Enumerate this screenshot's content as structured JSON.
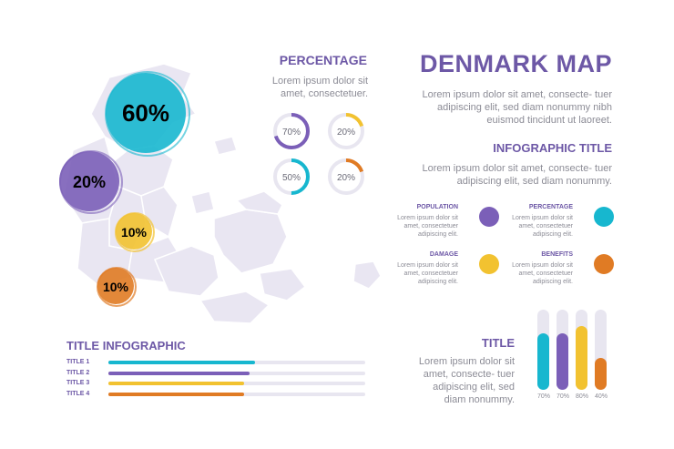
{
  "header": {
    "title": "DENMARK MAP",
    "description": "Lorem ipsum dolor sit amet, consecte- tuer adipiscing elit, sed diam nonummy nibh euismod tincidunt ut laoreet."
  },
  "percentage_panel": {
    "title": "PERCENTAGE",
    "description": "Lorem ipsum dolor sit amet, consectetuer.",
    "rings": [
      {
        "label": "70%",
        "value": 0.7,
        "color": "#7b5fb8"
      },
      {
        "label": "20%",
        "value": 0.2,
        "color": "#f2c230"
      },
      {
        "label": "50%",
        "value": 0.5,
        "color": "#17b7cf"
      },
      {
        "label": "20%",
        "value": 0.2,
        "color": "#e07b24"
      }
    ]
  },
  "infographic_panel": {
    "title": "INFOGRAPHIC TITLE",
    "description": "Lorem ipsum dolor sit amet, consecte- tuer adipiscing elit, sed diam nonummy.",
    "legend": [
      {
        "title": "POPULATION",
        "text": "Lorem ipsum dolor sit amet, consectetuer adipiscing elit.",
        "color": "#7b5fb8"
      },
      {
        "title": "PERCENTAGE",
        "text": "Lorem ipsum dolor sit amet, consectetuer adipiscing elit.",
        "color": "#17b7cf"
      },
      {
        "title": "DAMAGE",
        "text": "Lorem ipsum dolor sit amet, consectetuer adipiscing elit.",
        "color": "#f2c230"
      },
      {
        "title": "BENEFITS",
        "text": "Lorem ipsum dolor sit amet, consectetuer adipiscing elit.",
        "color": "#e07b24"
      }
    ]
  },
  "map_bubbles": [
    {
      "label": "60%",
      "color": "#17b7cf"
    },
    {
      "label": "20%",
      "color": "#7b5fb8"
    },
    {
      "label": "10%",
      "color": "#f2c230"
    },
    {
      "label": "10%",
      "color": "#e07b24"
    }
  ],
  "title_infographic": {
    "title": "TITLE INFOGRAPHIC",
    "bars": [
      {
        "label": "TITLE 1",
        "value": 0.57,
        "color": "#17b7cf"
      },
      {
        "label": "TITLE 2",
        "value": 0.55,
        "color": "#7b5fb8"
      },
      {
        "label": "TITLE 3",
        "value": 0.53,
        "color": "#f2c230"
      },
      {
        "label": "TITLE 4",
        "value": 0.53,
        "color": "#e07b24"
      }
    ]
  },
  "title_panel": {
    "title": "TITLE",
    "description": "Lorem ipsum dolor sit amet, consecte- tuer adipiscing elit, sed diam nonummy.",
    "bars": [
      {
        "label": "70%",
        "value": 0.7,
        "color": "#17b7cf"
      },
      {
        "label": "70%",
        "value": 0.7,
        "color": "#7b5fb8"
      },
      {
        "label": "80%",
        "value": 0.8,
        "color": "#f2c230"
      },
      {
        "label": "40%",
        "value": 0.4,
        "color": "#e07b24"
      }
    ]
  }
}
